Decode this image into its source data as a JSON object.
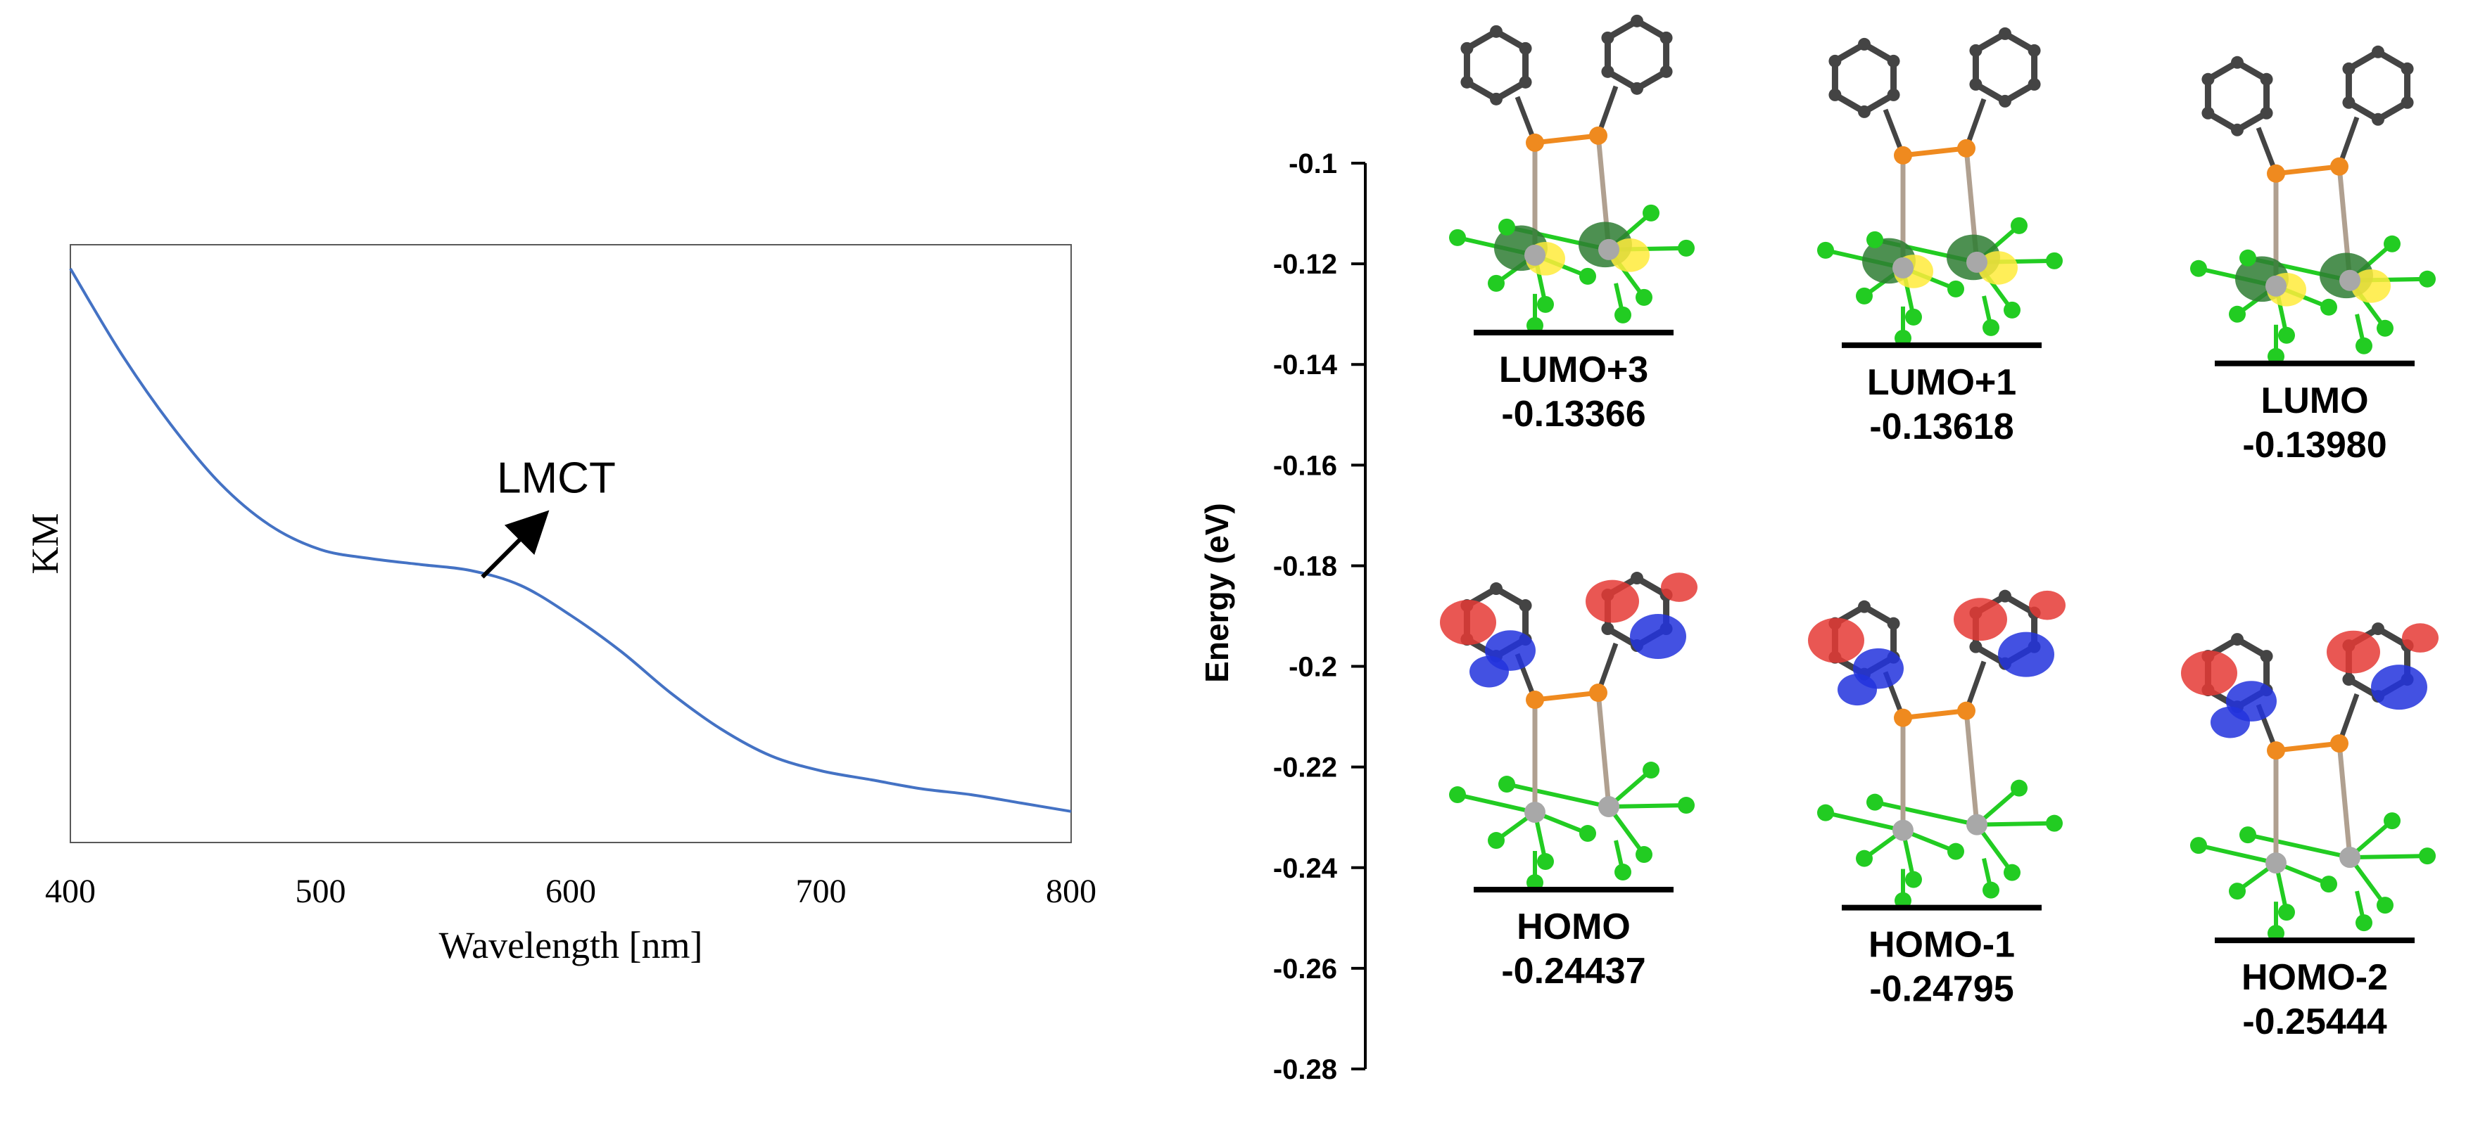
{
  "chart_data": [
    {
      "type": "line",
      "xlabel": "Wavelength [nm]",
      "ylabel": "KM",
      "xlim": [
        400,
        800
      ],
      "x_ticks": [
        "400",
        "500",
        "600",
        "700",
        "800"
      ],
      "ylim": [
        0,
        1
      ],
      "y_ticks_shown": false,
      "grid": false,
      "series": [
        {
          "color": "#4472c4",
          "x": [
            400,
            420,
            440,
            460,
            480,
            500,
            520,
            540,
            560,
            580,
            600,
            620,
            640,
            660,
            680,
            700,
            720,
            740,
            760,
            780,
            800
          ],
          "values": [
            0.96,
            0.82,
            0.7,
            0.6,
            0.53,
            0.49,
            0.475,
            0.465,
            0.455,
            0.43,
            0.38,
            0.32,
            0.25,
            0.19,
            0.145,
            0.12,
            0.105,
            0.09,
            0.08,
            0.066,
            0.052
          ]
        }
      ],
      "annotations": [
        {
          "text": "LMCT",
          "x": 590,
          "y": 0.55,
          "arrow": true
        }
      ]
    },
    {
      "type": "energy_level_diagram",
      "ylabel": "Energy (eV)",
      "ylim": [
        -0.28,
        -0.1
      ],
      "y_ticks": [
        "-0.1",
        "-0.12",
        "-0.14",
        "-0.16",
        "-0.18",
        "-0.2",
        "-0.22",
        "-0.24",
        "-0.26",
        "-0.28"
      ],
      "levels": [
        {
          "name": "LUMO+3",
          "value": "-0.13366",
          "energy": -0.13366,
          "column": 1
        },
        {
          "name": "LUMO+1",
          "value": "-0.13618",
          "energy": -0.13618,
          "column": 2
        },
        {
          "name": "LUMO",
          "value": "-0.13980",
          "energy": -0.1398,
          "column": 3
        },
        {
          "name": "HOMO",
          "value": "-0.24437",
          "energy": -0.24437,
          "column": 1
        },
        {
          "name": "HOMO-1",
          "value": "-0.24795",
          "energy": -0.24795,
          "column": 2
        },
        {
          "name": "HOMO-2",
          "value": "-0.25444",
          "energy": -0.25444,
          "column": 3
        }
      ],
      "orbital_colors": {
        "lumo_lobe_a": "#ffeb3b",
        "lumo_lobe_b": "#2e7d32",
        "homo_lobe_a": "#e53935",
        "homo_lobe_b": "#2233dd",
        "phosphorus": "#ef8a1f",
        "chlorine": "#22cc22",
        "metal": "#a8a8a8",
        "carbon": "#444444"
      }
    }
  ]
}
